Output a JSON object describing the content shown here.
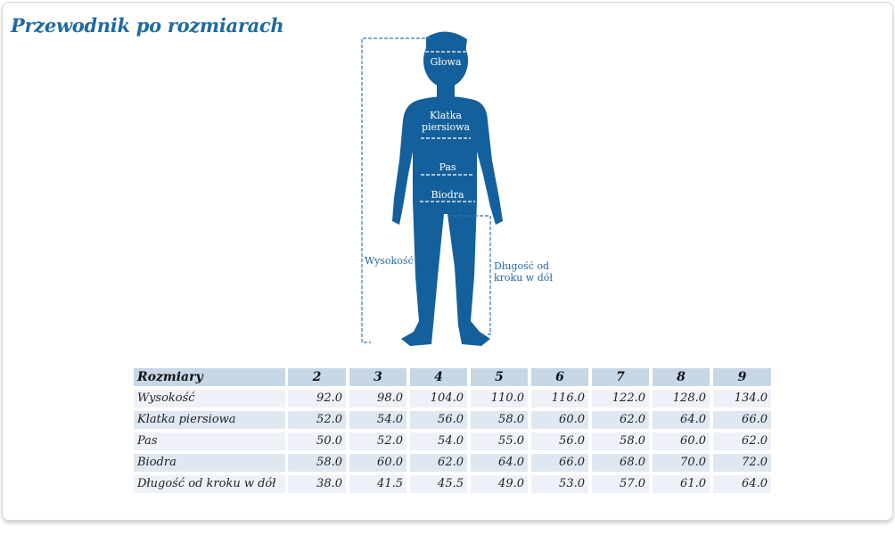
{
  "title": "Przewodnik po rozmiarach",
  "figure": {
    "labels": {
      "head": "Głowa",
      "chest_1": "Klatka",
      "chest_2": "piersiowa",
      "waist": "Pas",
      "hips": "Biodra",
      "height": "Wysokość",
      "inseam_1": "Długość od",
      "inseam_2": "kroku w dół"
    },
    "color": "#14609c"
  },
  "table": {
    "header": "Rozmiary",
    "sizes": [
      "2",
      "3",
      "4",
      "5",
      "6",
      "7",
      "8",
      "9"
    ],
    "rows": [
      {
        "label": "Wysokość",
        "values": [
          "92.0",
          "98.0",
          "104.0",
          "110.0",
          "116.0",
          "122.0",
          "128.0",
          "134.0"
        ]
      },
      {
        "label": "Klatka piersiowa",
        "values": [
          "52.0",
          "54.0",
          "56.0",
          "58.0",
          "60.0",
          "62.0",
          "64.0",
          "66.0"
        ]
      },
      {
        "label": "Pas",
        "values": [
          "50.0",
          "52.0",
          "54.0",
          "55.0",
          "56.0",
          "58.0",
          "60.0",
          "62.0"
        ]
      },
      {
        "label": "Biodra",
        "values": [
          "58.0",
          "60.0",
          "62.0",
          "64.0",
          "66.0",
          "68.0",
          "70.0",
          "72.0"
        ]
      },
      {
        "label": "Długość od kroku w dół",
        "values": [
          "38.0",
          "41.5",
          "45.5",
          "49.0",
          "53.0",
          "57.0",
          "61.0",
          "64.0"
        ]
      }
    ]
  }
}
